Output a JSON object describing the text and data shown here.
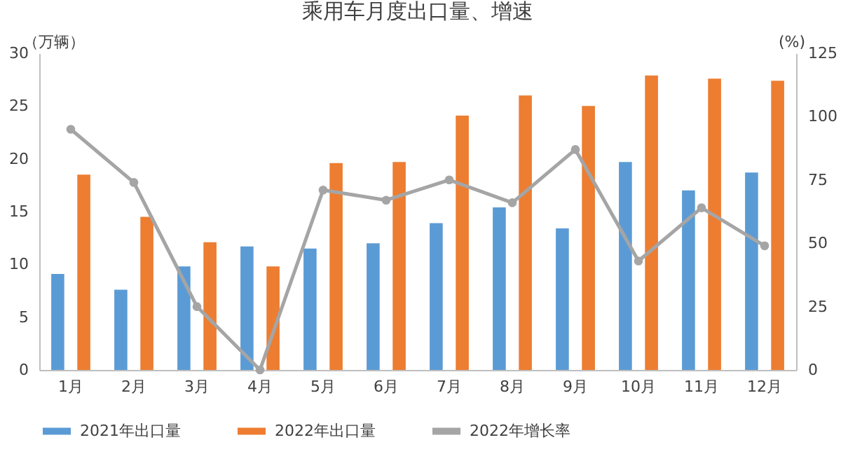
{
  "chart_data": {
    "type": "bar",
    "title": "乘用车月度出口量、增速",
    "ylabel": "（万辆）",
    "y2label": "(%)",
    "categories": [
      "1月",
      "2月",
      "3月",
      "4月",
      "5月",
      "6月",
      "7月",
      "8月",
      "9月",
      "10月",
      "11月",
      "12月"
    ],
    "series": [
      {
        "name": "2021年出口量",
        "color": "#5b9bd5",
        "values": [
          9.1,
          7.6,
          9.8,
          11.7,
          11.5,
          12.0,
          13.9,
          15.4,
          13.4,
          19.7,
          17.0,
          18.7
        ]
      },
      {
        "name": "2022年出口量",
        "color": "#ed7d31",
        "values": [
          18.5,
          14.5,
          12.1,
          9.8,
          19.6,
          19.7,
          24.1,
          26.0,
          25.0,
          27.9,
          27.6,
          27.4
        ]
      },
      {
        "name": "2022年增长率",
        "type": "line",
        "axis": "y2",
        "color": "#a5a5a5",
        "values": [
          95,
          74,
          25,
          0,
          71,
          67,
          75,
          66,
          87,
          43,
          64,
          49
        ]
      }
    ],
    "ylim": [
      0,
      30
    ],
    "yticks": [
      0,
      5,
      10,
      15,
      20,
      25,
      30
    ],
    "y2lim": [
      0,
      125
    ],
    "y2ticks": [
      0,
      25,
      50,
      75,
      100,
      125
    ],
    "grid": false,
    "legend": "bottom",
    "marker": "circle",
    "line_style": "solid"
  }
}
